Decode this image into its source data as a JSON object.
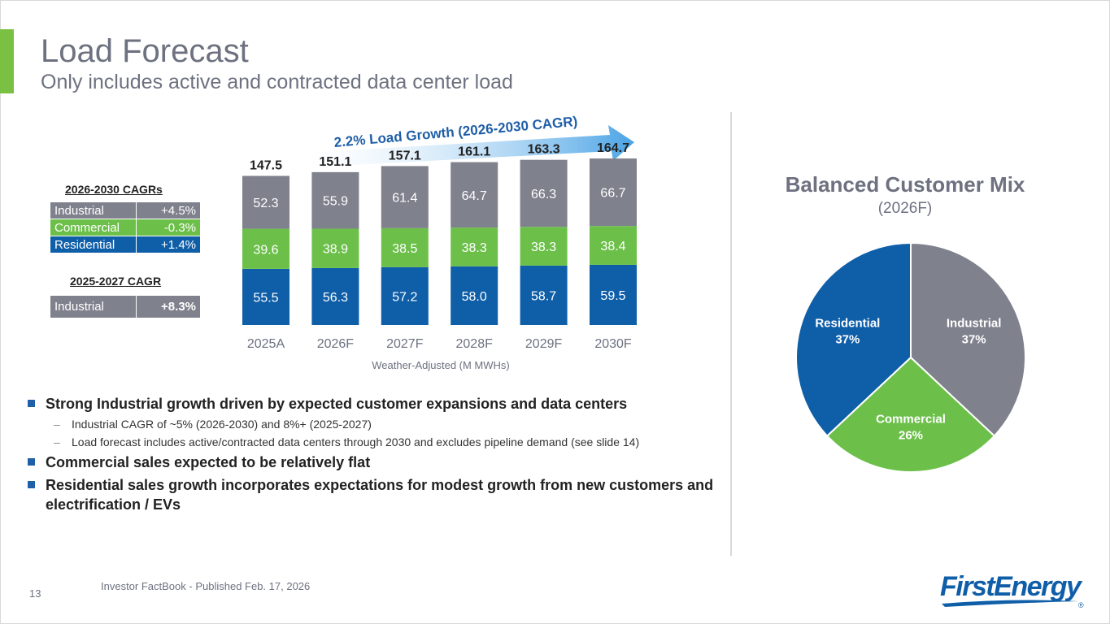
{
  "page": {
    "title": "Load Forecast",
    "subtitle": "Only includes active and contracted data center load",
    "page_number": "13",
    "footer": "Investor FactBook - Published Feb. 17, 2026",
    "logo_text": "FirstEnergy",
    "logo_mark": "®"
  },
  "colors": {
    "industrial": "#7f818d",
    "commercial": "#6cc04a",
    "residential": "#0f5ea8",
    "accent": "#7ac143",
    "arrow": "#4aa3e6"
  },
  "cagr_tables": {
    "heading_1": "2026-2030 CAGRs",
    "rows_1": [
      {
        "label": "Industrial",
        "value": "+4.5%"
      },
      {
        "label": "Commercial",
        "value": "-0.3%"
      },
      {
        "label": "Residential",
        "value": "+1.4%"
      }
    ],
    "heading_2": "2025-2027 CAGR",
    "rows_2": [
      {
        "label": "Industrial",
        "value": "+8.3%"
      }
    ]
  },
  "growth_banner": "2.2% Load Growth (2026-2030 CAGR)",
  "bullets": {
    "b1": "Strong Industrial growth driven by expected customer expansions and data centers",
    "b1_sub1": "Industrial CAGR of ~5% (2026-2030) and 8%+ (2025-2027)",
    "b1_sub2": "Load forecast includes active/contracted data centers through 2030 and excludes pipeline demand (see slide 14)",
    "b2": "Commercial sales expected to be relatively flat",
    "b3": "Residential sales growth incorporates expectations for modest growth from new customers and electrification / EVs"
  },
  "pie_panel": {
    "title": "Balanced Customer Mix",
    "subtitle": "(2026F)"
  },
  "chart_data": [
    {
      "type": "bar",
      "stacked": true,
      "categories": [
        "2025A",
        "2026F",
        "2027F",
        "2028F",
        "2029F",
        "2030F"
      ],
      "series": [
        {
          "name": "Residential",
          "values": [
            55.5,
            56.3,
            57.2,
            58.0,
            58.7,
            59.5
          ]
        },
        {
          "name": "Commercial",
          "values": [
            39.6,
            38.9,
            38.5,
            38.3,
            38.3,
            38.4
          ]
        },
        {
          "name": "Industrial",
          "values": [
            52.3,
            55.9,
            61.4,
            64.7,
            66.3,
            66.7
          ]
        }
      ],
      "totals": [
        "147.5",
        "151.1",
        "157.1",
        "161.1",
        "163.3",
        "164.7"
      ],
      "xlabel": "Weather-Adjusted (M MWHs)",
      "ylabel": "",
      "ylim": [
        0,
        175
      ]
    },
    {
      "type": "pie",
      "title": "Balanced Customer Mix",
      "subtitle": "(2026F)",
      "slices": [
        {
          "label": "Industrial",
          "value": 37,
          "text": "37%"
        },
        {
          "label": "Commercial",
          "value": 26,
          "text": "26%"
        },
        {
          "label": "Residential",
          "value": 37,
          "text": "37%"
        }
      ]
    }
  ]
}
